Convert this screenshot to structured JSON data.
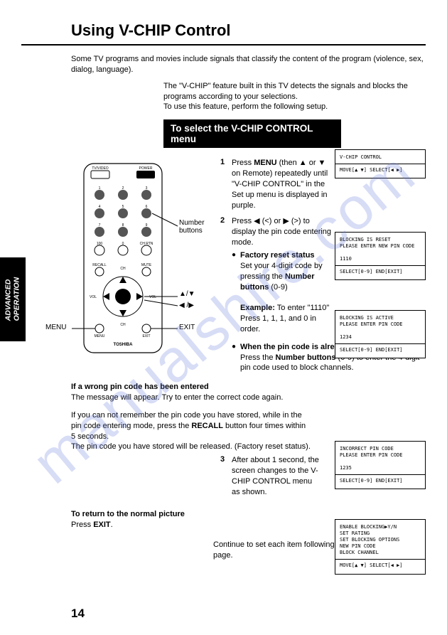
{
  "title": "Using V-CHIP Control",
  "intro": "Some TV programs and movies include signals that classify the content of the program (violence, sex, dialog, language).",
  "intro2a": "The \"V-CHIP\" feature  built in this TV detects the signals and blocks the programs  according to your selections.",
  "intro2b": "To use this feature, perform the following setup.",
  "tab_label": "ADVANCED\nOPERATION",
  "select_header": "To select the V-CHIP CONTROL menu",
  "remote_labels": {
    "number_buttons": "Number\nbuttons",
    "updown": "▲/▼",
    "leftright": "◀ /▶",
    "menu": "MENU",
    "exit": "EXIT"
  },
  "step1": {
    "num": "1",
    "body_a": "Press ",
    "body_b_bold": "MENU",
    "body_c": " (then ▲ or ▼  on Remote) repeatedly until \"V-CHIP CONTROL\" in the Set up menu is displayed in purple."
  },
  "step2": {
    "num": "2",
    "body": "Press  ◀ (<) or ▶ (>) to display the pin code entering mode.",
    "bullet1_title": "Factory reset status",
    "bullet1_a": "Set your 4-digit code by pressing the ",
    "bullet1_b_bold": "Number buttons",
    "bullet1_c": " (0-9)",
    "example_label": "Example:",
    "example_a": "  To enter \"1110\"",
    "example_b": "Press 1, 1, 1, and 0 in order.",
    "bullet2_title": "When the pin code is already stored",
    "bullet2_a": "Press the ",
    "bullet2_b_bold": "Number buttons",
    "bullet2_c": " (0-9) to enter the 4-digit pin code used to block channels."
  },
  "wrong_pin": {
    "heading": "If a wrong pin code has been entered",
    "body": "The message will appear. Try to enter the correct code again."
  },
  "recall": {
    "a": "If you can not remember the pin code you have stored, while in the pin code entering mode, press the ",
    "b_bold": "RECALL",
    "c": " button four times within 5 seconds.",
    "d": "The pin code you have stored will be released. (Factory reset status)."
  },
  "step3": {
    "num": "3",
    "body": "After about 1 second, the screen changes to the V-CHIP CONTROL menu as shown."
  },
  "return_sec": {
    "heading": "To return to the normal picture",
    "a": "Press ",
    "b_bold": "EXIT",
    "c": "."
  },
  "continue": "Continue to set  each item following the steps on the next page.",
  "page_number": "14",
  "osd1": {
    "t": 210,
    "h": 80,
    "l1": " ",
    "l2": " ",
    "l3": "V-CHIP CONTROL",
    "l4": " ",
    "foot": "MOVE[▲ ▼]  SELECT[◀  ▶]"
  },
  "osd2": {
    "t": 326,
    "h": 74,
    "l1": "BLOCKING IS RESET",
    "l2": "PLEASE ENTER NEW PIN CODE",
    "l3": "  1110",
    "foot": "SELECT[0-9] END[EXIT]"
  },
  "osd3": {
    "t": 436,
    "h": 74,
    "l1": "BLOCKING IS ACTIVE",
    "l2": "PLEASE ENTER PIN CODE",
    "l3": "  1234",
    "foot": "SELECT[0-9] END[EXIT]"
  },
  "osd4": {
    "t": 620,
    "h": 84,
    "l1": "INCORRECT PIN CODE",
    "l2": "PLEASE ENTER PIN CODE",
    "l3": "  1235",
    "foot": "SELECT[0-9] END[EXIT]"
  },
  "osd5": {
    "t": 730,
    "h": 84,
    "l1": "ENABLE BLOCKING▶Y/N",
    "l2": "SET RATING",
    "l3": "SET BLOCKING OPTIONS",
    "l4": "NEW PIN CODE",
    "l5": "BLOCK CHANNEL",
    "foot": "MOVE[▲ ▼]  SELECT[◀  ▶]"
  },
  "watermark": "manualshire.com"
}
